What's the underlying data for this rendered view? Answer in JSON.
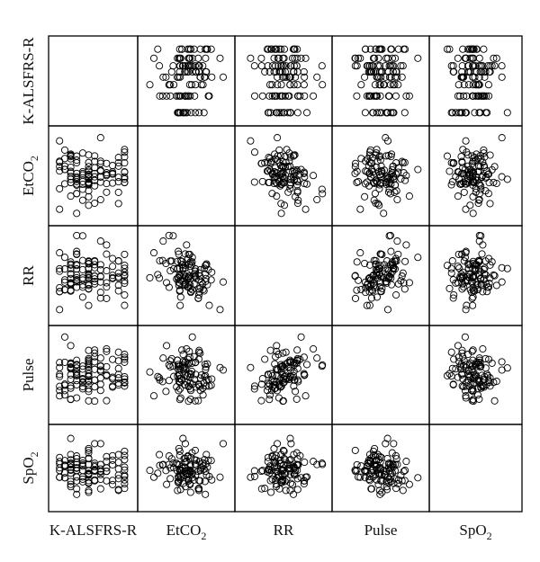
{
  "chart_data": {
    "type": "scatter",
    "variables": [
      {
        "key": "alsfrs",
        "label": "K-ALSFRS-R",
        "base": "K-ALSFRS-R",
        "sub": ""
      },
      {
        "key": "etco2",
        "label": "EtCO2",
        "base": "EtCO",
        "sub": "2"
      },
      {
        "key": "rr",
        "label": "RR",
        "base": "RR",
        "sub": ""
      },
      {
        "key": "pulse",
        "label": "Pulse",
        "base": "Pulse",
        "sub": ""
      },
      {
        "key": "spo2",
        "label": "SpO2",
        "base": "SpO",
        "sub": "2"
      }
    ],
    "diagonal": "empty",
    "point_marker": "open-circle",
    "point_color": "#000000",
    "grid": false,
    "tick_labels": false,
    "n_points_per_panel": 110
  }
}
